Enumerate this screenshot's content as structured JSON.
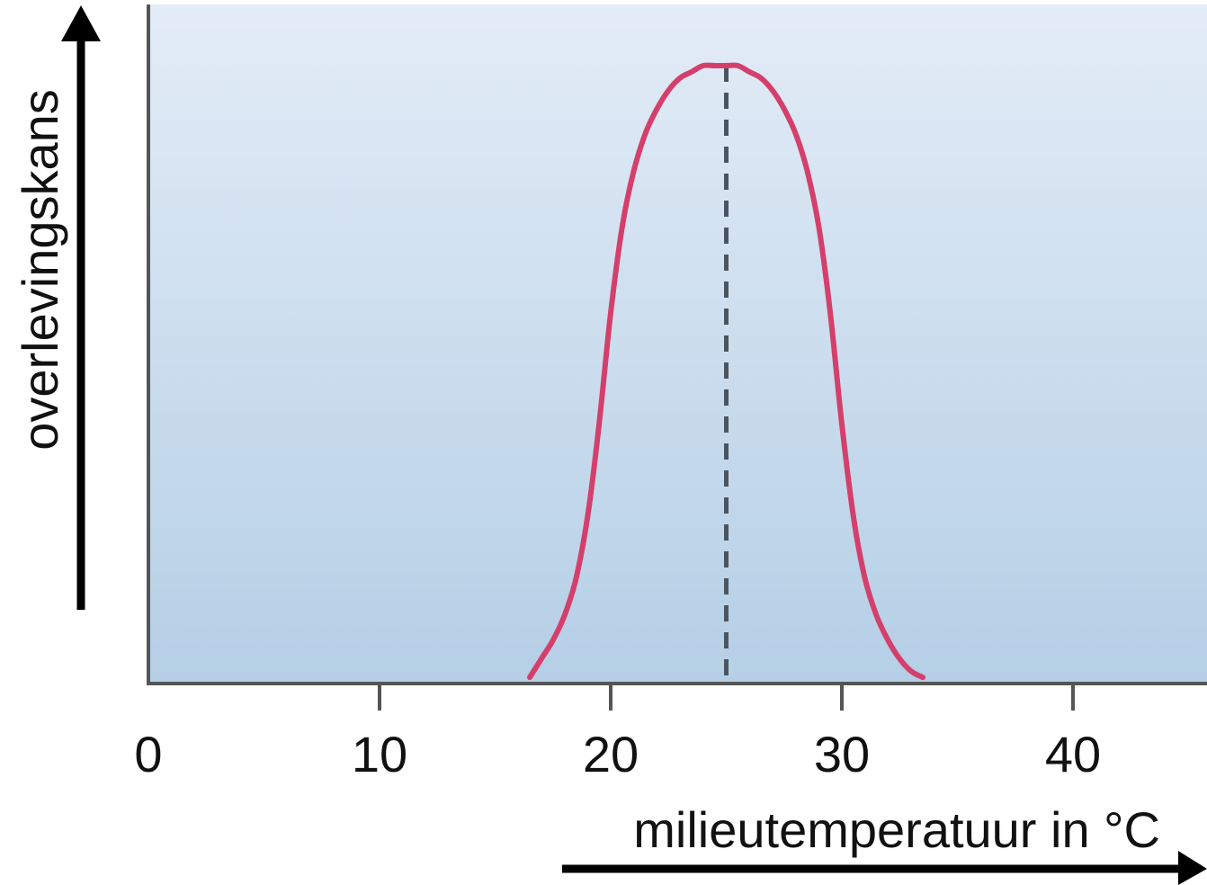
{
  "chart_data": {
    "type": "line",
    "xlabel": "milieutemperatuur in °C",
    "ylabel": "overlevingskans",
    "xlim": [
      0,
      46
    ],
    "ylim": [
      0,
      1
    ],
    "x_ticks": [
      0,
      10,
      20,
      30,
      40
    ],
    "y_ticks_shown": false,
    "grid": false,
    "legend": "none",
    "series": [
      {
        "color": "#d43f6b",
        "x": [
          16.5,
          17,
          17.5,
          18,
          18.5,
          19,
          19.5,
          20,
          20.5,
          21,
          21.5,
          22,
          22.5,
          23,
          23.5,
          24,
          24.5,
          25,
          25.5,
          26,
          26.5,
          27,
          27.5,
          28,
          28.5,
          29,
          29.5,
          30,
          30.5,
          31,
          31.5,
          32,
          32.5,
          33,
          33.5
        ],
        "y": [
          0.01,
          0.04,
          0.07,
          0.11,
          0.17,
          0.27,
          0.42,
          0.6,
          0.74,
          0.83,
          0.89,
          0.93,
          0.96,
          0.98,
          0.99,
          1.0,
          1.0,
          1.0,
          1.0,
          0.99,
          0.98,
          0.96,
          0.93,
          0.89,
          0.83,
          0.74,
          0.6,
          0.42,
          0.27,
          0.17,
          0.11,
          0.07,
          0.04,
          0.02,
          0.01
        ]
      }
    ],
    "annotations": [
      {
        "type": "vertical-dashed-line",
        "x": 25,
        "y_from": 0,
        "y_to": 1.0,
        "color": "#4a5560"
      }
    ],
    "background_gradient": [
      "#e3ecf7",
      "#b5cfe6"
    ],
    "axis_color": "#555555",
    "arrow_color": "#000000"
  }
}
